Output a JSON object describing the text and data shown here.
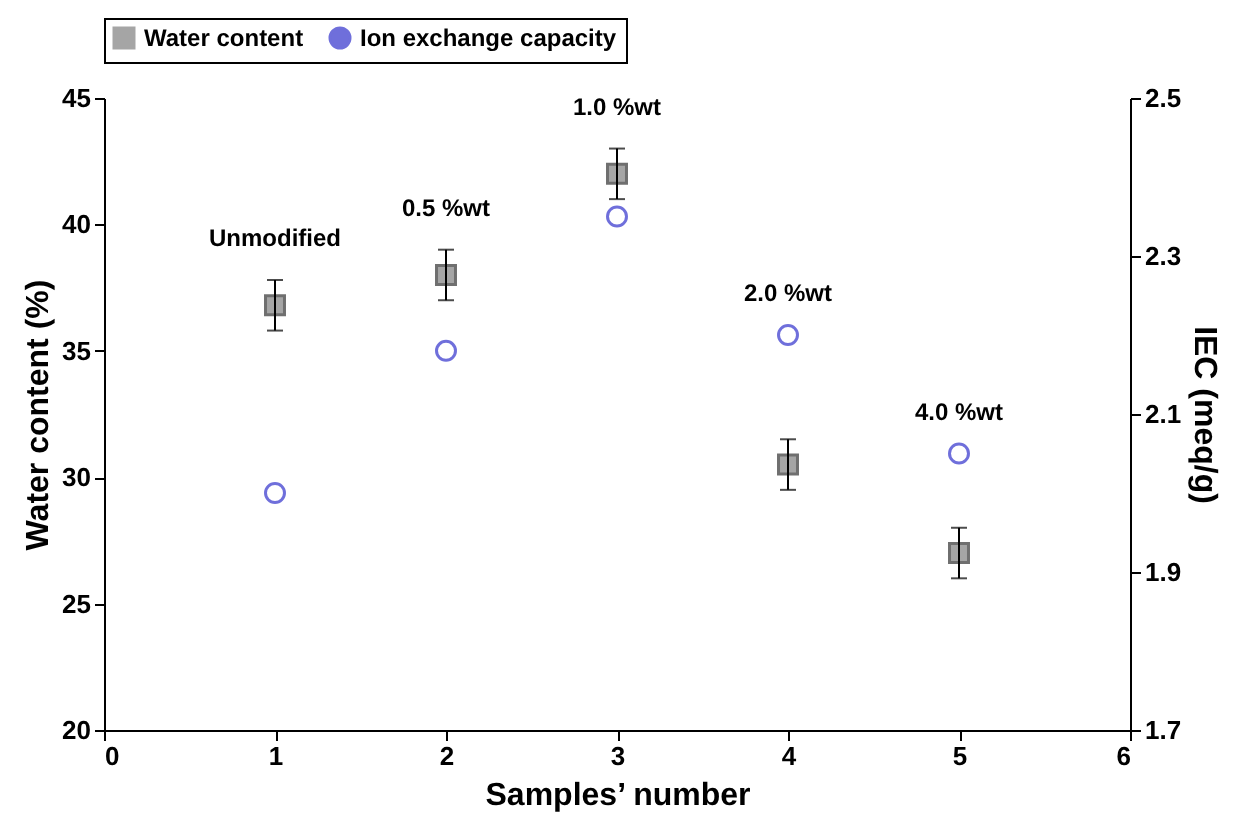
{
  "chart_data": {
    "type": "scatter",
    "xlabel": "Samples’ number",
    "ylabel": "Water content (%)",
    "y2label": "IEC (meq/g)",
    "x": [
      1,
      2,
      3,
      4,
      5
    ],
    "series": [
      {
        "name": "Water content",
        "color": "#808080",
        "marker": "square",
        "values": [
          36.8,
          38,
          42,
          30.5,
          27
        ],
        "errors": [
          1,
          1,
          1,
          1,
          1
        ]
      },
      {
        "name": "Ion exchange capacity",
        "color": "#3333cc",
        "marker": "circle",
        "axis": "y2",
        "values": [
          2.0,
          2.18,
          2.35,
          2.2,
          2.05
        ]
      }
    ],
    "xlim": [
      0,
      6
    ],
    "xticks": [
      0,
      1,
      2,
      3,
      4,
      5,
      6
    ],
    "ylim": [
      20,
      45
    ],
    "yticks": [
      20,
      25,
      30,
      35,
      40,
      45
    ],
    "y2lim": [
      1.7,
      2.5
    ],
    "y2ticks": [
      1.7,
      1.9,
      2.1,
      2.3,
      2.5
    ],
    "legend": "top",
    "grid": false,
    "annotations": [
      "Unmodified",
      "0.5 %wt",
      "1.0 %wt",
      "2.0 %wt",
      "4.0 %wt"
    ]
  }
}
